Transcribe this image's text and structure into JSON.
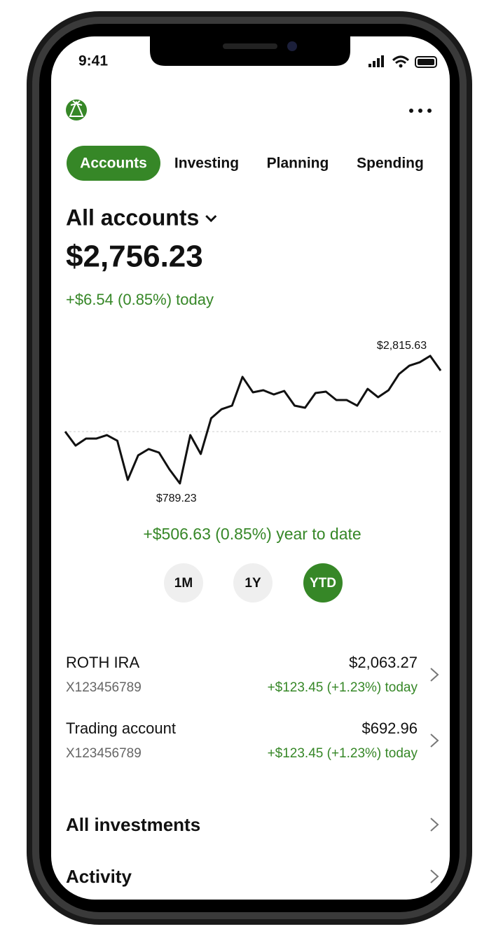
{
  "status_bar": {
    "time": "9:41"
  },
  "tabs": {
    "items": [
      "Accounts",
      "Investing",
      "Planning",
      "Spending"
    ],
    "selected": 0
  },
  "header": {
    "title": "All accounts",
    "balance": "$2,756.23",
    "change_today": "+$6.54 (0.85%) today"
  },
  "chart_data": {
    "type": "line",
    "color": "#111111",
    "values": [
      1613,
      1390,
      1502,
      1502,
      1557,
      1468,
      845,
      1235,
      1335,
      1279,
      1012,
      789.23,
      1557,
      1257,
      1825,
      1969,
      2025,
      2482,
      2237,
      2270,
      2203,
      2259,
      2025,
      1992,
      2226,
      2248,
      2114,
      2114,
      2025,
      2292,
      2159,
      2270,
      2526,
      2660,
      2715,
      2815.63,
      2582
    ],
    "value_labels": [
      null,
      null,
      null,
      null,
      null,
      null,
      null,
      null,
      null,
      null,
      null,
      "$789.23",
      null,
      null,
      null,
      null,
      null,
      null,
      null,
      null,
      null,
      null,
      null,
      null,
      null,
      null,
      null,
      null,
      null,
      null,
      null,
      null,
      null,
      null,
      null,
      "$2,815.63",
      null
    ]
  },
  "chart_summary": "+$506.63 (0.85%) year to date",
  "ranges": {
    "items": [
      "1M",
      "1Y",
      "YTD"
    ],
    "selected": 2
  },
  "accounts": [
    {
      "name": "ROTH IRA",
      "number": "X123456789",
      "balance": "$2,063.27",
      "change": "+$123.45 (+1.23%) today"
    },
    {
      "name": "Trading account",
      "number": "X123456789",
      "balance": "$692.96",
      "change": "+$123.45 (+1.23%) today"
    }
  ],
  "links": [
    "All investments",
    "Activity"
  ]
}
